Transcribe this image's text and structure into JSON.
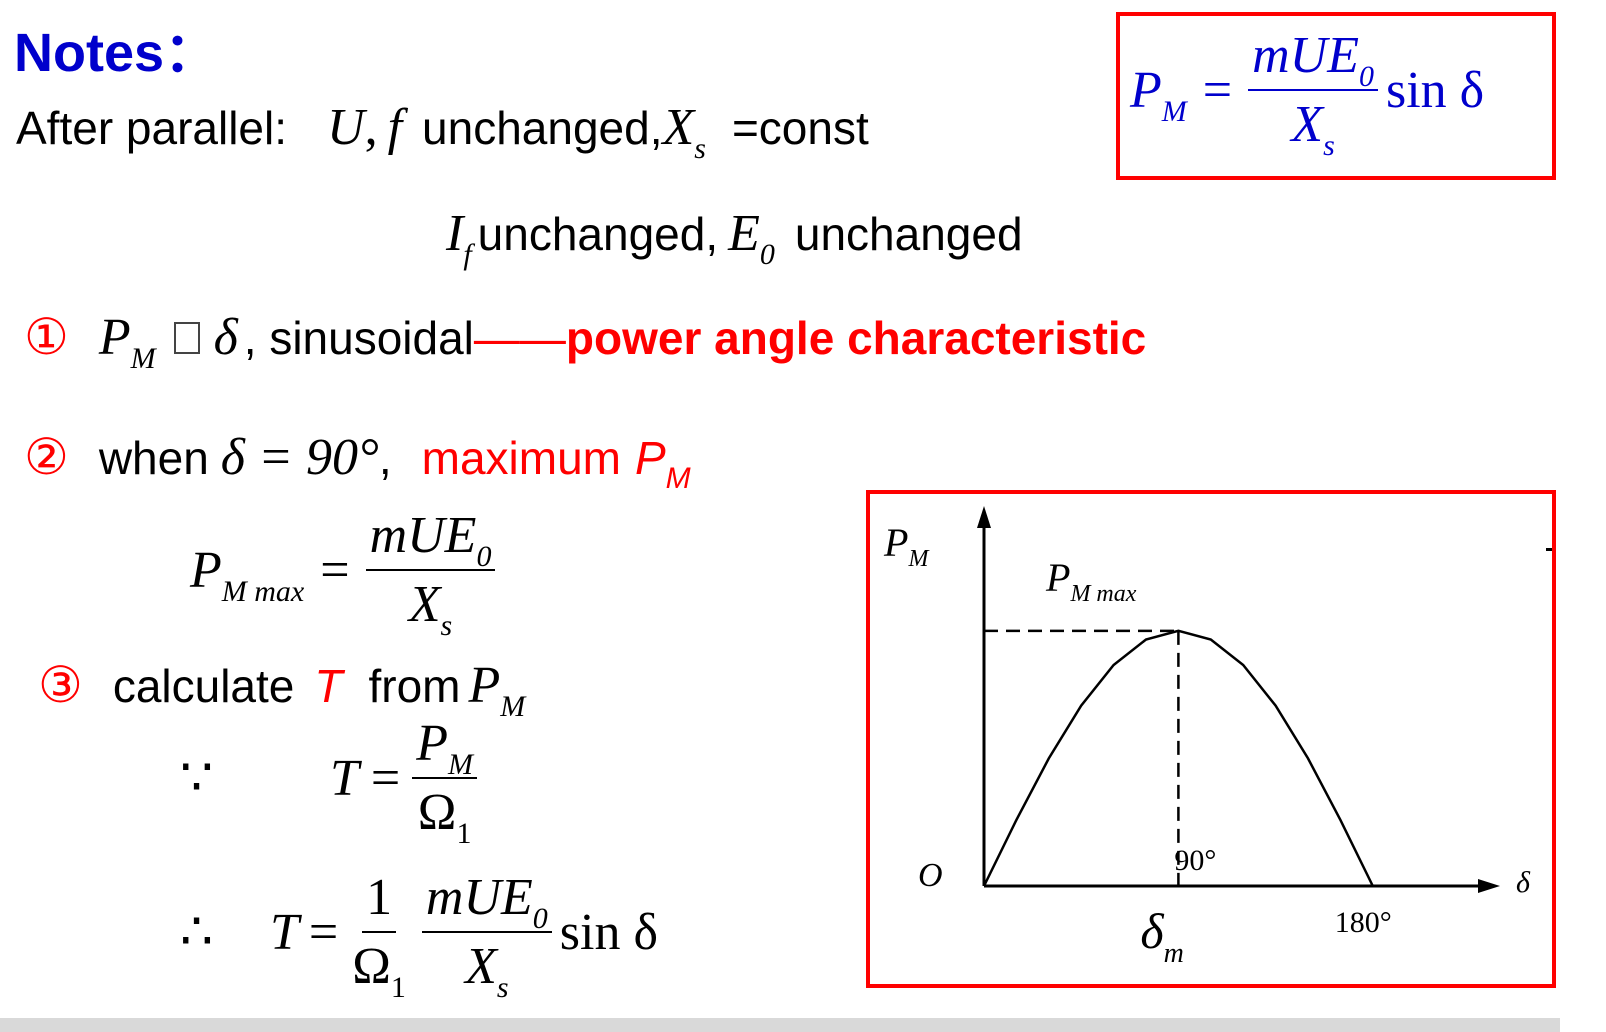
{
  "heading": "Notes：",
  "line1": {
    "label": "After parallel:",
    "vars": "U",
    "comma": ",",
    "var_f": "f",
    "text1": "unchanged,",
    "var_x": "X",
    "sub_s": "s",
    "text2": "=const"
  },
  "line2": {
    "var_i": "I",
    "sub_f": "f",
    "text1": "unchanged,",
    "var_e": "E",
    "sub_0": "0",
    "text2": "unchanged"
  },
  "formula_box": {
    "lhs": "P",
    "lhs_sub": "M",
    "eq": "=",
    "num": "mUE",
    "num_sub": "0",
    "den": "X",
    "den_sub": "s",
    "tail": "sin δ"
  },
  "item1": {
    "marker": "①",
    "var": "P",
    "sub": "M",
    "delta": "δ",
    "text": ", sinusoidal",
    "dash": "——",
    "highlight": "power angle characteristic"
  },
  "item2": {
    "marker": "②",
    "text": "when",
    "eq": "δ = 90°",
    "comma": ",",
    "highlight": "maximum",
    "var": "P",
    "sub": "M"
  },
  "pmax_formula": {
    "lhs": "P",
    "lhs_sub": "M max",
    "eq": "=",
    "num": "mUE",
    "num_sub": "0",
    "den": "X",
    "den_sub": "s"
  },
  "item3": {
    "marker": "③",
    "text1": "calculate",
    "var_t": "T",
    "text2": "from",
    "var_p": "P",
    "sub": "M"
  },
  "because": {
    "symbol": "∵",
    "lhs": "T",
    "eq": "=",
    "num": "P",
    "num_sub": "M",
    "den": "Ω",
    "den_sub": "1"
  },
  "therefore": {
    "symbol": "∴",
    "lhs": "T",
    "eq": "=",
    "f1_num": "1",
    "f1_den": "Ω",
    "f1_den_sub": "1",
    "f2_num": "mUE",
    "f2_num_sub": "0",
    "f2_den": "X",
    "f2_den_sub": "s",
    "tail": "sin δ"
  },
  "chart_data": {
    "type": "line",
    "ylabel": "PM",
    "ylabel_sub": "M",
    "xlabel": "δ",
    "origin_label": "O",
    "peak_label": "P",
    "peak_label_sub": "M max",
    "peak_x_label": "90°",
    "end_x_label": "180°",
    "delta_m_label": "δ",
    "delta_m_sub": "m",
    "x": [
      0,
      15,
      30,
      45,
      60,
      75,
      90,
      105,
      120,
      135,
      150,
      165,
      180
    ],
    "y": [
      0,
      0.259,
      0.5,
      0.707,
      0.866,
      0.966,
      1,
      0.966,
      0.866,
      0.707,
      0.5,
      0.259,
      0
    ],
    "xlim": [
      0,
      225
    ],
    "ylim": [
      0,
      1.45
    ]
  }
}
